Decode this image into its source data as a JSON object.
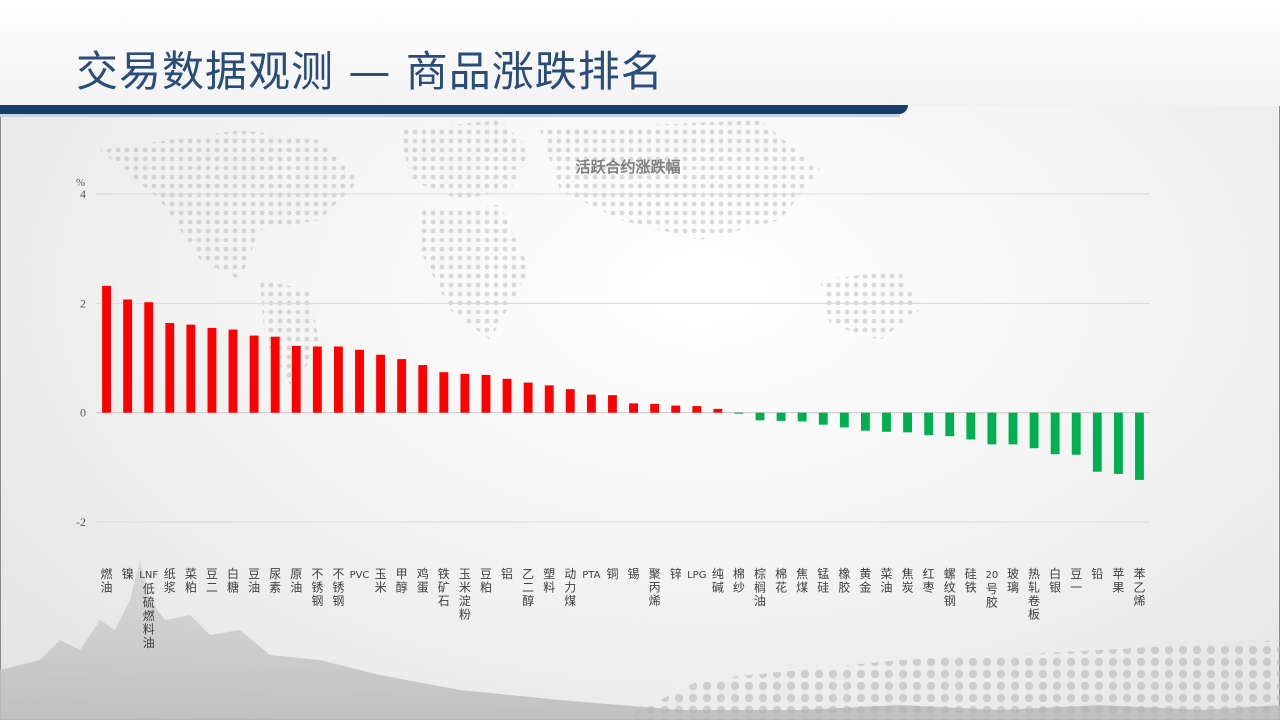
{
  "page": {
    "title": "交易数据观测 — 商品涨跌排名"
  },
  "colors": {
    "up": "#ff0000",
    "down": "#00b050",
    "title": "#2a4c78",
    "title_rule": "#173b6c"
  },
  "chart_data": {
    "type": "bar",
    "title": "活跃合约涨跌幅",
    "ylabel": "%",
    "ylim": [
      -2,
      4
    ],
    "yticks": [
      4,
      2,
      0,
      -2
    ],
    "grid": true,
    "legend": "none",
    "categories": [
      "燃油",
      "镍",
      "LNF低硫燃料油",
      "纸浆",
      "菜粕",
      "豆二",
      "白糖",
      "豆油",
      "尿素",
      "原油",
      "不锈钢",
      "不锈钢",
      "PVC",
      "玉米",
      "甲醇",
      "鸡蛋",
      "铁矿石",
      "玉米淀粉",
      "豆粕",
      "铝",
      "乙二醇",
      "塑料",
      "动力煤",
      "PTA",
      "铜",
      "锡",
      "聚丙烯",
      "锌",
      "LPG",
      "纯碱",
      "棉纱",
      "棕榈油",
      "棉花",
      "焦煤",
      "锰硅",
      "橡胶",
      "黄金",
      "菜油",
      "焦炭",
      "红枣",
      "螺纹钢",
      "硅铁",
      "20号胶",
      "玻璃",
      "热轧卷板",
      "白银",
      "豆一",
      "铅",
      "苹果",
      "苯乙烯"
    ],
    "values": [
      2.32,
      2.07,
      2.02,
      1.64,
      1.61,
      1.55,
      1.52,
      1.41,
      1.39,
      1.22,
      1.21,
      1.21,
      1.15,
      1.06,
      0.98,
      0.87,
      0.74,
      0.71,
      0.69,
      0.62,
      0.55,
      0.5,
      0.43,
      0.33,
      0.32,
      0.17,
      0.16,
      0.13,
      0.12,
      0.07,
      -0.02,
      -0.14,
      -0.15,
      -0.16,
      -0.22,
      -0.27,
      -0.33,
      -0.35,
      -0.36,
      -0.41,
      -0.43,
      -0.49,
      -0.58,
      -0.58,
      -0.65,
      -0.76,
      -0.77,
      -1.08,
      -1.12,
      -1.23
    ]
  }
}
